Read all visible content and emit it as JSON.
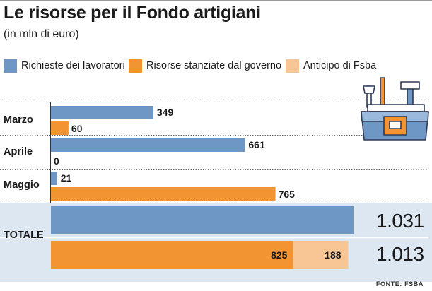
{
  "title": "Le risorse per il Fondo artigiani",
  "subtitle": "(in mln di euro)",
  "source": "FONTE: FSBA",
  "colors": {
    "richieste": "#6f97c6",
    "risorse": "#f39433",
    "anticipo": "#f8c595",
    "total_band": "#dde7f2"
  },
  "chart_data": {
    "type": "bar",
    "orientation": "horizontal",
    "title": "Le risorse per il Fondo artigiani",
    "subtitle": "(in mln di euro)",
    "legend_position": "top",
    "categories": [
      "Marzo",
      "Aprile",
      "Maggio"
    ],
    "series": [
      {
        "name": "Richieste dei lavoratori",
        "values": [
          349,
          661,
          21
        ]
      },
      {
        "name": "Risorse stanziate dal governo",
        "values": [
          60,
          0,
          765
        ]
      }
    ],
    "legend": [
      {
        "name": "Richieste dei lavoratori",
        "color": "#6f97c6"
      },
      {
        "name": "Risorse stanziate dal governo",
        "color": "#f39433"
      },
      {
        "name": "Anticipo di Fsba",
        "color": "#f8c595"
      }
    ],
    "value_labels": [
      [
        "349",
        "60"
      ],
      [
        "661",
        "0"
      ],
      [
        "21",
        "765"
      ]
    ],
    "total": {
      "label": "TOTALE",
      "richieste": 1031,
      "richieste_label": "1.031",
      "risorse_stanziate": 825,
      "risorse_stanziate_label": "825",
      "anticipo": 188,
      "anticipo_label": "188",
      "stacked_total": 1013,
      "stacked_total_label": "1.013"
    },
    "xlim": [
      0,
      1031
    ],
    "grid": false
  }
}
